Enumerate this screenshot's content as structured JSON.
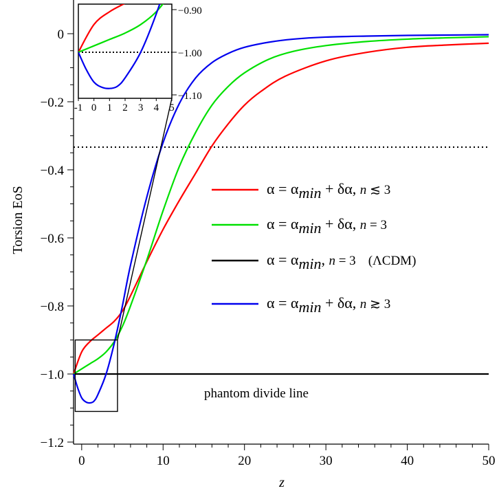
{
  "chart_data": {
    "type": "line",
    "xlabel": "z",
    "ylabel": "Torsion EoS",
    "xlim": [
      -1,
      50
    ],
    "ylim": [
      -1.2,
      0.05
    ],
    "x_ticks": [
      "0",
      "10",
      "20",
      "30",
      "40",
      "50"
    ],
    "y_ticks": [
      "0",
      "−0.2",
      "−0.4",
      "−0.6",
      "−0.8",
      "−1.0",
      "−1.2"
    ],
    "x_tick_values": [
      0,
      10,
      20,
      30,
      40,
      50
    ],
    "y_tick_values": [
      0,
      -0.2,
      -0.4,
      -0.6,
      -0.8,
      -1.0,
      -1.2
    ],
    "grid": false,
    "colors": {
      "red": "#ff0000",
      "green": "#00e000",
      "black": "#000000",
      "blue": "#0000ee"
    },
    "series": [
      {
        "name": "α = αmin + δα, n ≲ 3",
        "color": "#ff0000",
        "x": [
          -1,
          0,
          1,
          2,
          3,
          4,
          5,
          6,
          8,
          10,
          12,
          14,
          16,
          18,
          20,
          22,
          25,
          30,
          35,
          40,
          45,
          50
        ],
        "y": [
          -1.0,
          -0.935,
          -0.905,
          -0.885,
          -0.865,
          -0.845,
          -0.815,
          -0.77,
          -0.67,
          -0.575,
          -0.49,
          -0.41,
          -0.33,
          -0.265,
          -0.21,
          -0.17,
          -0.125,
          -0.08,
          -0.055,
          -0.04,
          -0.033,
          -0.028
        ]
      },
      {
        "name": "α = αmin + δα, n = 3",
        "color": "#00e000",
        "x": [
          -1,
          0,
          1,
          2,
          3,
          4,
          5,
          6,
          8,
          10,
          12,
          14,
          16,
          18,
          20,
          23,
          26,
          30,
          35,
          40,
          45,
          50
        ],
        "y": [
          -1.0,
          -0.985,
          -0.97,
          -0.955,
          -0.935,
          -0.905,
          -0.86,
          -0.8,
          -0.665,
          -0.52,
          -0.39,
          -0.29,
          -0.21,
          -0.155,
          -0.115,
          -0.075,
          -0.052,
          -0.035,
          -0.023,
          -0.016,
          -0.012,
          -0.009
        ]
      },
      {
        "name": "α = αmin, n = 3",
        "color": "#000000",
        "x": [
          -1,
          50
        ],
        "y": [
          -1.0,
          -1.0
        ]
      },
      {
        "name": "α = αmin + δα, n ≳ 3",
        "color": "#0000ee",
        "x": [
          -1,
          -0.5,
          0,
          0.5,
          1,
          1.5,
          2,
          3,
          4,
          5,
          6,
          8,
          10,
          12,
          14,
          16,
          18,
          20,
          23,
          26,
          30,
          35,
          40,
          45,
          50
        ],
        "y": [
          -1.0,
          -1.04,
          -1.07,
          -1.082,
          -1.085,
          -1.08,
          -1.06,
          -1.0,
          -0.91,
          -0.8,
          -0.68,
          -0.48,
          -0.32,
          -0.205,
          -0.13,
          -0.085,
          -0.058,
          -0.04,
          -0.025,
          -0.016,
          -0.01,
          -0.007,
          -0.005,
          -0.004,
          -0.003
        ]
      }
    ],
    "reference_lines": [
      {
        "y": -0.3333,
        "style": "dotted"
      },
      {
        "y": -1.0,
        "style": "dotted"
      }
    ],
    "inset": {
      "xlim": [
        -1,
        5
      ],
      "ylim": [
        -1.1,
        -0.9
      ],
      "x_ticks": [
        "-1",
        "0",
        "1",
        "2",
        "3",
        "4",
        "5"
      ],
      "x_tick_values": [
        -1,
        0,
        1,
        2,
        3,
        4,
        5
      ],
      "y_ticks": [
        "−0.90",
        "−1.00",
        "−1.10"
      ],
      "y_tick_values": [
        -0.9,
        -1.0,
        -1.1
      ]
    },
    "legend": {
      "placement": "right",
      "entries": [
        {
          "color": "#ff0000",
          "base": "α = α",
          "sub": "min",
          "rest": " + δα, ",
          "n": "n",
          "tail": " ≲ 3",
          "extra": ""
        },
        {
          "color": "#00e000",
          "base": "α = α",
          "sub": "min",
          "rest": " + δα, ",
          "n": "n",
          "tail": " = 3",
          "extra": ""
        },
        {
          "color": "#000000",
          "base": "α = α",
          "sub": "min",
          "rest": ", ",
          "n": "n",
          "tail": " = 3",
          "extra": "(ΛCDM)"
        },
        {
          "color": "#0000ee",
          "base": "α = α",
          "sub": "min",
          "rest": " + δα, ",
          "n": "n",
          "tail": " ≳ 3",
          "extra": ""
        }
      ]
    },
    "annotations": [
      "phantom divide line"
    ]
  }
}
